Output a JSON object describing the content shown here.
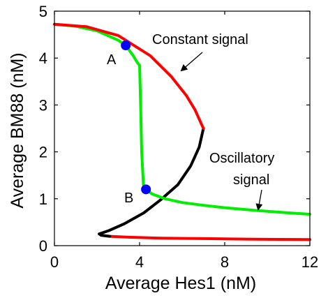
{
  "chart_data": {
    "type": "line",
    "xlabel": "Average Hes1 (nM)",
    "ylabel": "Average BM88 (nM)",
    "xlim": [
      0,
      12
    ],
    "ylim": [
      0,
      5
    ],
    "xticks": [
      "0",
      "4",
      "8",
      "12"
    ],
    "yticks": [
      "0",
      "1",
      "2",
      "3",
      "4",
      "5"
    ],
    "grid": false,
    "colors": {
      "stable": "#ff0000",
      "unstable": "#000000",
      "oscillatory": "#00ee00",
      "point": "#0000ff"
    },
    "series": [
      {
        "role": "upper-stable",
        "x": [
          0,
          1.5,
          3,
          4.5,
          5.5,
          6.2,
          6.6,
          6.85,
          7.0
        ],
        "y": [
          4.72,
          4.67,
          4.48,
          4.05,
          3.6,
          3.2,
          2.9,
          2.65,
          2.5
        ]
      },
      {
        "role": "unstable",
        "x": [
          7.0,
          6.8,
          6.4,
          5.8,
          5.0,
          4.2,
          3.3,
          2.55,
          2.1,
          2.2,
          2.6
        ],
        "y": [
          2.5,
          2.1,
          1.7,
          1.3,
          0.98,
          0.7,
          0.47,
          0.32,
          0.25,
          0.22,
          0.2
        ]
      },
      {
        "role": "lower-stable",
        "x": [
          2.2,
          2.6,
          3.5,
          5,
          7,
          9,
          12
        ],
        "y": [
          0.22,
          0.2,
          0.18,
          0.16,
          0.15,
          0.14,
          0.13
        ]
      },
      {
        "role": "oscillatory",
        "x": [
          0,
          1,
          2,
          3,
          3.35,
          3.7,
          3.9,
          4.0,
          4.05,
          4.1,
          4.18,
          4.3,
          4.6,
          5.2,
          6,
          7,
          8,
          9.5,
          11,
          12
        ],
        "y": [
          4.72,
          4.68,
          4.58,
          4.38,
          4.27,
          4.05,
          3.9,
          3.85,
          3.0,
          2.0,
          1.3,
          1.2,
          1.1,
          1.0,
          0.92,
          0.86,
          0.81,
          0.75,
          0.7,
          0.67
        ]
      }
    ],
    "points": [
      {
        "label": "A",
        "x": 3.35,
        "y": 4.27
      },
      {
        "label": "B",
        "x": 4.3,
        "y": 1.2
      }
    ],
    "annotations": [
      {
        "text": "Constant signal"
      },
      {
        "text": "Oscillatory"
      },
      {
        "text": "signal"
      }
    ]
  }
}
